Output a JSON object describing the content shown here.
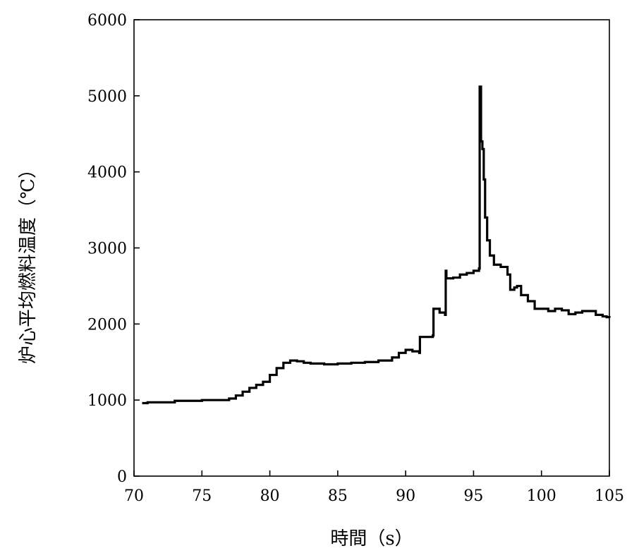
{
  "chart_data": {
    "type": "line",
    "title": "",
    "xlabel": "時間（s）",
    "ylabel": "炉心平均燃料温度（℃）",
    "xlim": [
      70,
      105
    ],
    "ylim": [
      0,
      6000
    ],
    "x_ticks": [
      70,
      75,
      80,
      85,
      90,
      95,
      100,
      105
    ],
    "y_ticks": [
      0,
      1000,
      2000,
      3000,
      4000,
      5000,
      6000
    ],
    "x_tick_labels": [
      "70",
      "75",
      "80",
      "85",
      "90",
      "95",
      "100",
      "105"
    ],
    "y_tick_labels": [
      "0",
      "1000",
      "2000",
      "3000",
      "4000",
      "5000",
      "6000"
    ],
    "grid": false,
    "legend": "none",
    "series": [
      {
        "color": "#000000",
        "x": [
          70.6,
          71.0,
          73.0,
          75.0,
          77.0,
          77.5,
          78.0,
          78.5,
          79.0,
          79.5,
          80.0,
          80.5,
          81.0,
          81.5,
          82.0,
          82.5,
          83.0,
          84.0,
          85.0,
          86.0,
          87.0,
          88.0,
          89.0,
          89.5,
          90.0,
          90.5,
          91.0,
          91.05,
          92.0,
          92.05,
          92.5,
          92.9,
          92.95,
          93.0,
          93.5,
          94.0,
          94.5,
          95.0,
          95.4,
          95.45,
          95.55,
          95.65,
          95.75,
          95.85,
          96.0,
          96.2,
          96.5,
          97.0,
          97.5,
          97.7,
          98.0,
          98.2,
          98.5,
          99.0,
          99.5,
          100.0,
          100.5,
          101.0,
          101.5,
          102.0,
          102.5,
          103.0,
          104.0,
          104.5,
          104.8,
          105.0
        ],
        "y": [
          960,
          970,
          990,
          1000,
          1020,
          1060,
          1110,
          1160,
          1200,
          1240,
          1330,
          1420,
          1490,
          1520,
          1510,
          1490,
          1480,
          1470,
          1480,
          1490,
          1500,
          1520,
          1560,
          1620,
          1660,
          1640,
          1620,
          1830,
          1850,
          2200,
          2150,
          2120,
          2700,
          2600,
          2610,
          2650,
          2670,
          2700,
          2730,
          5120,
          4400,
          4300,
          3900,
          3400,
          3100,
          2900,
          2780,
          2750,
          2650,
          2450,
          2480,
          2500,
          2380,
          2300,
          2200,
          2200,
          2170,
          2200,
          2180,
          2130,
          2150,
          2170,
          2120,
          2100,
          2090,
          2080
        ]
      }
    ]
  }
}
